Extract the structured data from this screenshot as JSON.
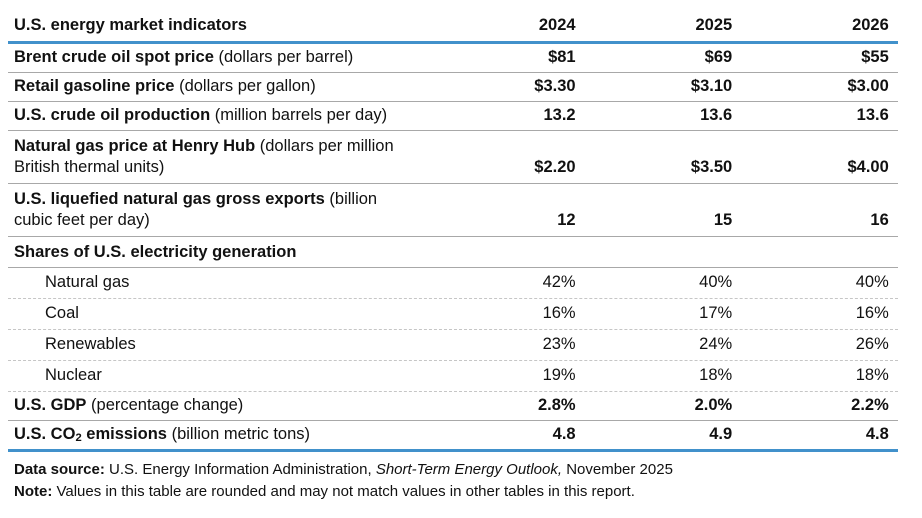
{
  "colors": {
    "blue_rule": "#4191cb",
    "gray_rule": "#a8a8a8",
    "dashed_rule": "#c6c6c6",
    "text": "#111111",
    "background": "#ffffff"
  },
  "table": {
    "title": "U.S. energy market indicators",
    "years": [
      "2024",
      "2025",
      "2026"
    ],
    "rows": [
      {
        "label": "Brent crude oil spot price",
        "unit": " (dollars per barrel)",
        "values": [
          "$81",
          "$69",
          "$55"
        ]
      },
      {
        "label": "Retail gasoline price",
        "unit": " (dollars per gallon)",
        "values": [
          "$3.30",
          "$3.10",
          "$3.00"
        ]
      },
      {
        "label": "U.S. crude oil production",
        "unit": " (million barrels per day)",
        "values": [
          "13.2",
          "13.6",
          "13.6"
        ]
      },
      {
        "label": "Natural gas price at Henry Hub",
        "unit": " (dollars per million",
        "unit_line2": "British thermal units)",
        "values": [
          "$2.20",
          "$3.50",
          "$4.00"
        ]
      },
      {
        "label": "U.S. liquefied natural gas gross exports",
        "unit": " (billion",
        "unit_line2": "cubic feet per day)",
        "values": [
          "12",
          "15",
          "16"
        ]
      },
      {
        "label": "Shares of U.S. electricity generation",
        "unit": "",
        "values": [
          "",
          "",
          ""
        ]
      },
      {
        "label": "Natural gas",
        "values": [
          "42%",
          "40%",
          "40%"
        ]
      },
      {
        "label": "Coal",
        "values": [
          "16%",
          "17%",
          "16%"
        ]
      },
      {
        "label": "Renewables",
        "values": [
          "23%",
          "24%",
          "26%"
        ]
      },
      {
        "label": "Nuclear",
        "values": [
          "19%",
          "18%",
          "18%"
        ]
      },
      {
        "label": "U.S. GDP",
        "unit": " (percentage change)",
        "values": [
          "2.8%",
          "2.0%",
          "2.2%"
        ]
      },
      {
        "label_pre_sub": "U.S. CO",
        "label_sub": "2",
        "label_post_sub": " emissions",
        "unit": " (billion metric tons)",
        "values": [
          "4.8",
          "4.9",
          "4.8"
        ]
      }
    ]
  },
  "footer": {
    "source_label": "Data source:",
    "source_text": " U.S. Energy Information Administration, ",
    "source_publication": "Short-Term Energy Outlook,",
    "source_date": " November 2025",
    "note_label": "Note:",
    "note_text": " Values in this table are rounded and may not match values in other tables in this report."
  },
  "chart_data": {
    "type": "table",
    "title": "U.S. energy market indicators",
    "columns": [
      "U.S. energy market indicators",
      "2024",
      "2025",
      "2026"
    ],
    "rows": [
      [
        "Brent crude oil spot price (dollars per barrel)",
        "$81",
        "$69",
        "$55"
      ],
      [
        "Retail gasoline price (dollars per gallon)",
        "$3.30",
        "$3.10",
        "$3.00"
      ],
      [
        "U.S. crude oil production (million barrels per day)",
        "13.2",
        "13.6",
        "13.6"
      ],
      [
        "Natural gas price at Henry Hub (dollars per million British thermal units)",
        "$2.20",
        "$3.50",
        "$4.00"
      ],
      [
        "U.S. liquefied natural gas gross exports (billion cubic feet per day)",
        "12",
        "15",
        "16"
      ],
      [
        "Shares of U.S. electricity generation",
        "",
        "",
        ""
      ],
      [
        "Natural gas",
        "42%",
        "40%",
        "40%"
      ],
      [
        "Coal",
        "16%",
        "17%",
        "16%"
      ],
      [
        "Renewables",
        "23%",
        "24%",
        "26%"
      ],
      [
        "Nuclear",
        "19%",
        "18%",
        "18%"
      ],
      [
        "U.S. GDP (percentage change)",
        "2.8%",
        "2.0%",
        "2.2%"
      ],
      [
        "U.S. CO2 emissions (billion metric tons)",
        "4.8",
        "4.9",
        "4.8"
      ]
    ],
    "source": "U.S. Energy Information Administration, Short-Term Energy Outlook, November 2025",
    "note": "Values in this table are rounded and may not match values in other tables in this report."
  }
}
